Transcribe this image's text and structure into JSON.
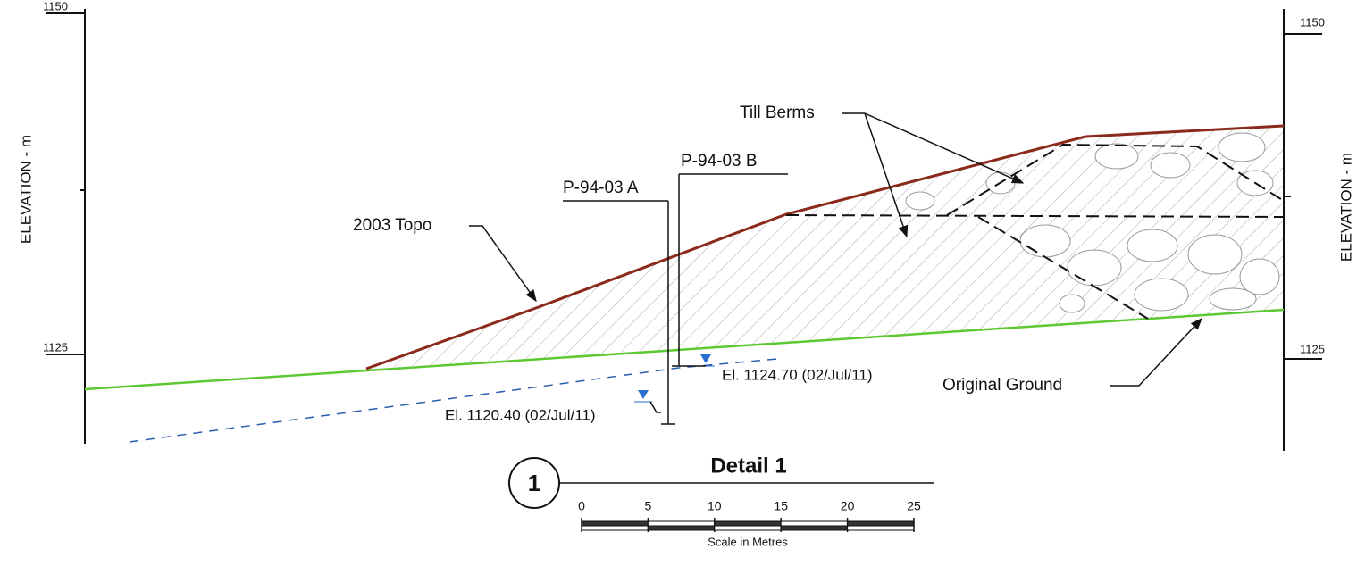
{
  "left_axis": {
    "label": "ELEVATION - m",
    "ticks": [
      "1150",
      "1125"
    ]
  },
  "right_axis": {
    "label": "ELEVATION - m",
    "ticks": [
      "1150",
      "1125"
    ]
  },
  "annotations": {
    "till_berms": "Till Berms",
    "topo": "2003 Topo",
    "piezo_a": "P-94-03 A",
    "piezo_b": "P-94-03 B",
    "el_b": "El. 1124.70 (02/Jul/11)",
    "el_a": "El. 1120.40 (02/Jul/11)",
    "original_ground": "Original Ground"
  },
  "detail": {
    "number": "1",
    "title": "Detail 1"
  },
  "scale": {
    "ticks": [
      "0",
      "5",
      "10",
      "15",
      "20",
      "25"
    ],
    "caption": "Scale in Metres"
  }
}
